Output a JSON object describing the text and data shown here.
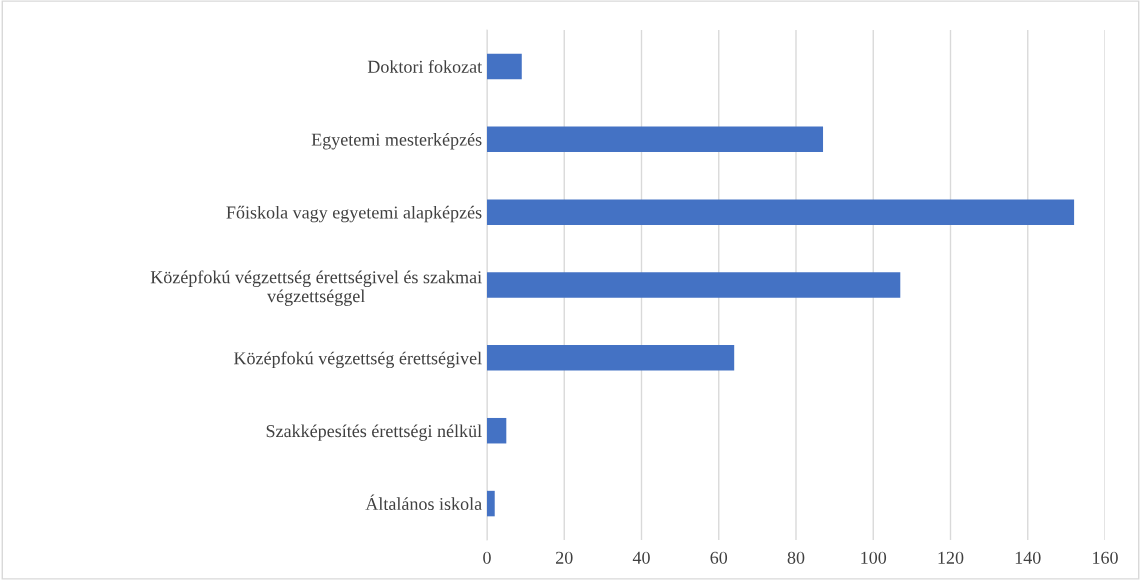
{
  "chart_data": {
    "type": "bar",
    "orientation": "horizontal",
    "categories": [
      "Doktori fokozat",
      "Egyetemi mesterképzés",
      "Főiskola vagy egyetemi alapképzés",
      "Középfokú végzettség érettségivel és szakmai végzettséggel",
      "Középfokú végzettség érettségivel",
      "Szakképesítés érettségi nélkül",
      "Általános iskola"
    ],
    "values": [
      9,
      87,
      152,
      107,
      64,
      5,
      2
    ],
    "color": "#4472c4",
    "xlim": [
      0,
      160
    ],
    "xticks": [
      0,
      20,
      40,
      60,
      80,
      100,
      120,
      140,
      160
    ],
    "grid": "x"
  }
}
